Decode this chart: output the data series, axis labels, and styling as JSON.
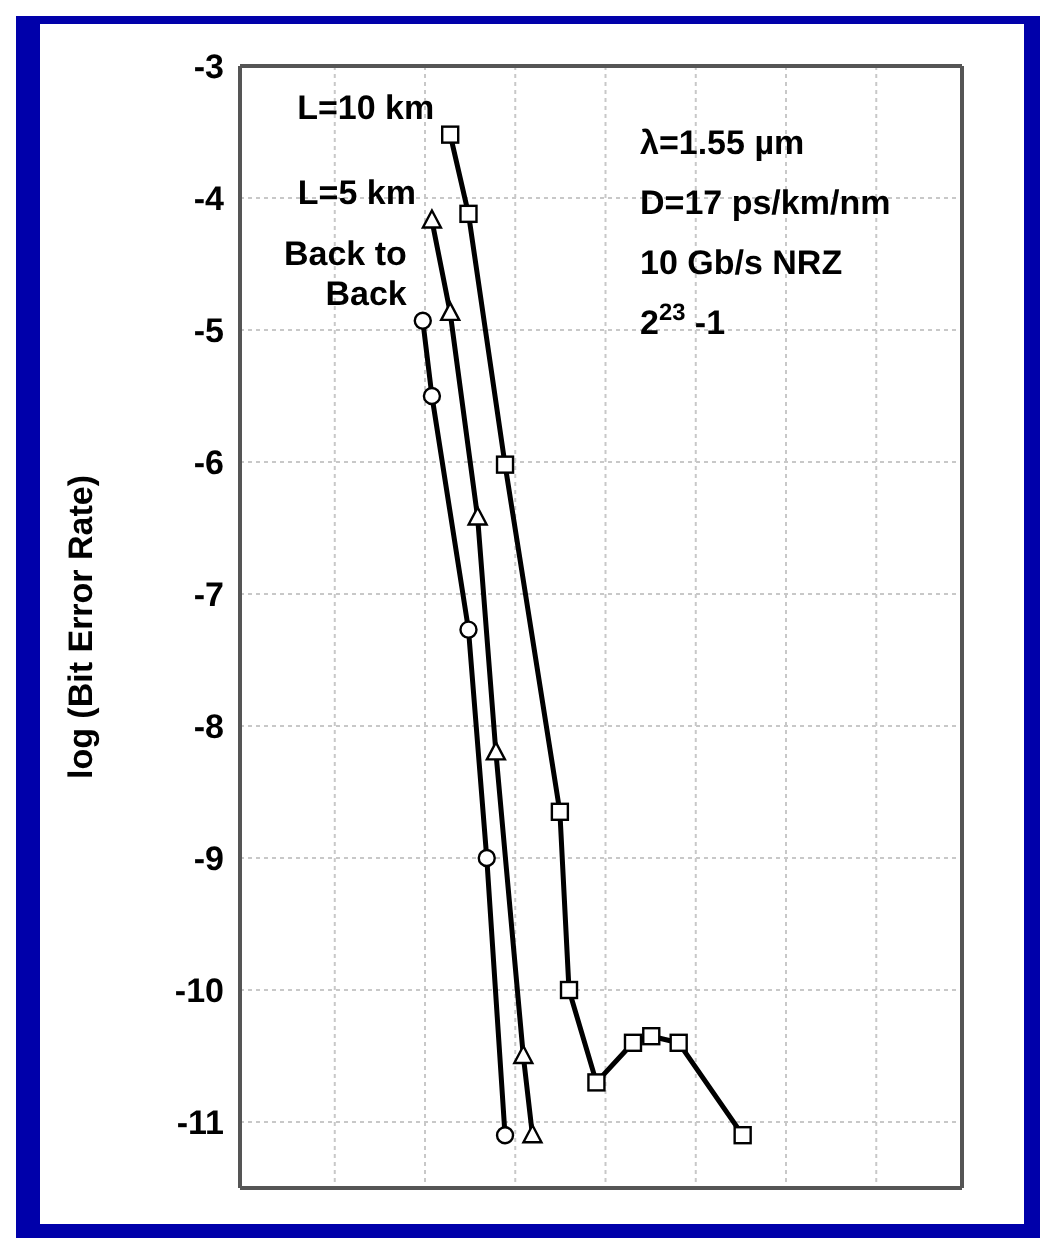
{
  "chart_data": {
    "type": "line",
    "ylabel": "log (Bit Error Rate)",
    "categories": [
      null,
      null,
      null,
      null,
      null,
      null,
      null,
      null,
      null,
      null,
      null,
      null,
      null,
      null,
      null,
      null,
      null,
      null,
      null,
      null,
      null,
      null,
      null,
      null,
      null,
      null,
      null,
      null,
      null,
      null,
      null,
      null,
      null,
      null,
      null,
      null,
      null,
      null,
      null,
      null,
      null,
      null,
      null,
      null,
      null,
      null,
      null,
      null,
      null,
      null,
      null,
      null,
      null,
      null,
      null,
      null,
      null,
      null,
      null,
      null,
      null,
      null,
      null,
      null,
      null,
      null,
      null,
      null,
      null,
      null,
      null,
      null,
      null,
      null,
      null,
      null,
      null,
      null,
      null,
      null
    ],
    "ylim": [
      -11.5,
      -3
    ],
    "yticks": [
      -3,
      -4,
      -5,
      -6,
      -7,
      -8,
      -9,
      -10,
      -11
    ],
    "grid": true,
    "tick_labels": "y",
    "series": [
      {
        "name": "L=10 km",
        "color": "#000000",
        "marker": "square",
        "values": [
          null,
          null,
          null,
          null,
          null,
          null,
          null,
          null,
          null,
          null,
          null,
          null,
          null,
          null,
          null,
          null,
          null,
          null,
          null,
          null,
          null,
          null,
          null,
          -3.52,
          null,
          -4.12,
          null,
          null,
          null,
          -6.02,
          null,
          null,
          null,
          null,
          null,
          -8.65,
          -10.0,
          null,
          null,
          -10.7,
          null,
          null,
          null,
          -10.4,
          null,
          -10.35,
          null,
          null,
          -10.4,
          null,
          null,
          null,
          null,
          null,
          null,
          -11.1,
          null,
          null,
          null,
          null,
          null,
          null,
          null,
          null,
          null,
          null,
          null,
          null,
          null,
          null,
          null,
          null,
          null,
          null,
          null,
          null,
          null,
          null,
          null,
          null
        ]
      },
      {
        "name": "L=5 km",
        "color": "#000000",
        "marker": "triangle",
        "values": [
          null,
          null,
          null,
          null,
          null,
          null,
          null,
          null,
          null,
          null,
          null,
          null,
          null,
          null,
          null,
          null,
          null,
          null,
          null,
          null,
          null,
          -4.17,
          null,
          -4.87,
          null,
          null,
          -6.42,
          null,
          -8.2,
          null,
          null,
          -10.5,
          -11.1,
          null,
          null,
          null,
          null,
          null,
          null,
          null,
          null,
          null,
          null,
          null,
          null,
          null,
          null,
          null,
          null,
          null,
          null,
          null,
          null,
          null,
          null,
          null,
          null,
          null,
          null,
          null,
          null,
          null,
          null,
          null,
          null,
          null,
          null,
          null,
          null,
          null,
          null,
          null,
          null,
          null,
          null,
          null,
          null,
          null,
          null,
          null
        ]
      },
      {
        "name": "Back to Back",
        "color": "#000000",
        "marker": "circle",
        "values": [
          null,
          null,
          null,
          null,
          null,
          null,
          null,
          null,
          null,
          null,
          null,
          null,
          null,
          null,
          null,
          null,
          null,
          null,
          null,
          null,
          -4.93,
          -5.5,
          null,
          null,
          null,
          -7.27,
          null,
          -9.0,
          null,
          -11.1,
          null,
          null,
          null,
          null,
          null,
          null,
          null,
          null,
          null,
          null,
          null,
          null,
          null,
          null,
          null,
          null,
          null,
          null,
          null,
          null,
          null,
          null,
          null,
          null,
          null,
          null,
          null,
          null,
          null,
          null,
          null,
          null,
          null,
          null,
          null,
          null,
          null,
          null,
          null,
          null,
          null,
          null,
          null,
          null,
          null,
          null,
          null,
          null,
          null,
          null
        ]
      }
    ],
    "annotations": [
      "λ=1.55 µm",
      "D=17 ps/km/nm",
      "10 Gb/s NRZ",
      "2$^{23}$ -1"
    ]
  }
}
